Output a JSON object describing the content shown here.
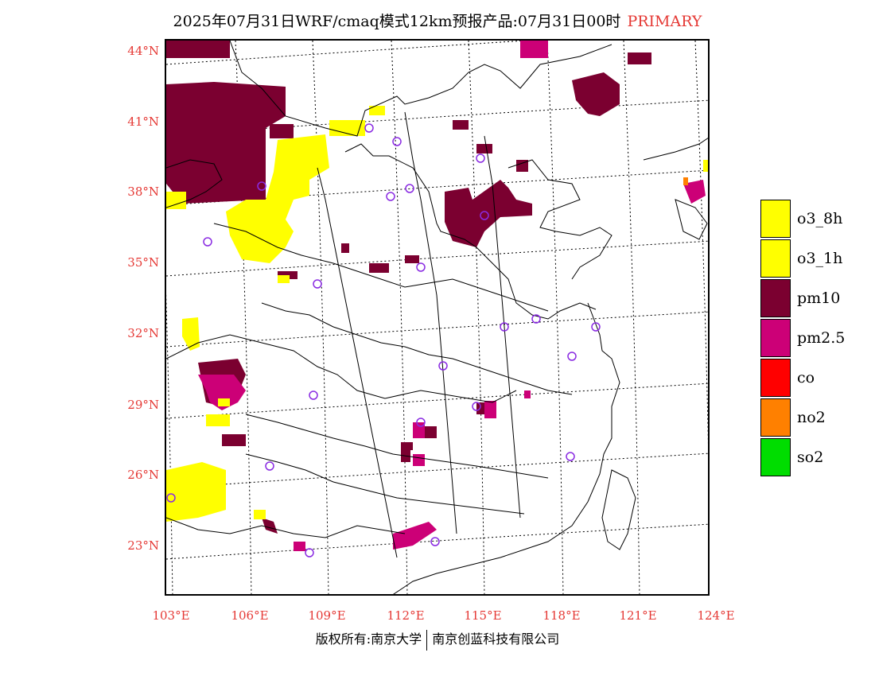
{
  "title": {
    "main": "2025年07月31日WRF/cmaq模式12km预报产品:07月31日00时",
    "tag": "PRIMARY",
    "tag_color": "#e53935"
  },
  "axes": {
    "lat_labels": [
      "44°N",
      "41°N",
      "38°N",
      "35°N",
      "32°N",
      "29°N",
      "26°N",
      "23°N"
    ],
    "lon_labels": [
      "103°E",
      "106°E",
      "109°E",
      "112°E",
      "115°E",
      "118°E",
      "121°E",
      "124°E"
    ],
    "label_color": "#e53935"
  },
  "legend": [
    {
      "label": "o3_8h",
      "color": "#ffff00"
    },
    {
      "label": "o3_1h",
      "color": "#ffff00"
    },
    {
      "label": "pm10",
      "color": "#7b0030"
    },
    {
      "label": "pm2.5",
      "color": "#cc0077"
    },
    {
      "label": "co",
      "color": "#ff0000"
    },
    {
      "label": "no2",
      "color": "#ff8000"
    },
    {
      "label": "so2",
      "color": "#00dd00"
    }
  ],
  "footer": {
    "left": "版权所有:南京大学",
    "right": "南京创蓝科技有限公司"
  }
}
